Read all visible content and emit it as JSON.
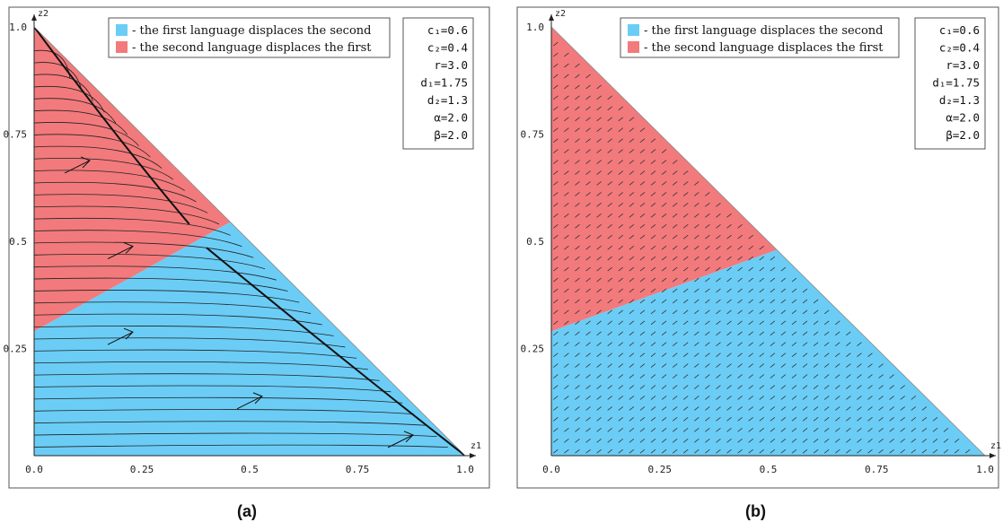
{
  "chart_data": [
    {
      "type": "area",
      "panel_label": "(a)",
      "xlabel": "z1",
      "ylabel": "z2",
      "xlim": [
        0,
        1
      ],
      "ylim": [
        0,
        1
      ],
      "x_ticks": [
        "0.0",
        "0.25",
        "0.5",
        "0.75",
        "1.0"
      ],
      "y_ticks": [
        "0.25",
        "0.5",
        "0.75",
        "1.0"
      ],
      "legend": [
        {
          "label": "- the first language displaces the second",
          "color": "#6bcdf6"
        },
        {
          "label": "- the second language displaces the first",
          "color": "#f27a7c"
        }
      ],
      "legend_position": "top",
      "parameters": [
        "c₁=0.6",
        "c₂=0.4",
        "r=3.0",
        "d₁=1.75",
        "d₂=1.3",
        "α=2.0",
        "β=2.0"
      ],
      "regions": {
        "feasible_triangle": [
          [
            0,
            0
          ],
          [
            1,
            0
          ],
          [
            0,
            1
          ]
        ],
        "separatrix": [
          [
            0,
            0.29
          ],
          [
            0.455,
            0.545
          ]
        ]
      },
      "plot_style": "phase trajectories"
    },
    {
      "type": "area",
      "panel_label": "(b)",
      "xlabel": "z1",
      "ylabel": "z2",
      "xlim": [
        0,
        1
      ],
      "ylim": [
        0,
        1
      ],
      "x_ticks": [
        "0.0",
        "0.25",
        "0.5",
        "0.75",
        "1.0"
      ],
      "y_ticks": [
        "0.25",
        "0.5",
        "0.75",
        "1.0"
      ],
      "legend": [
        {
          "label": "- the first language displaces the second",
          "color": "#6bcdf6"
        },
        {
          "label": "- the second language displaces the first",
          "color": "#f27a7c"
        }
      ],
      "legend_position": "top",
      "parameters": [
        "c₁=0.6",
        "c₂=0.4",
        "r=3.0",
        "d₁=1.75",
        "d₂=1.3",
        "α=2.0",
        "β=2.0"
      ],
      "regions": {
        "feasible_triangle": [
          [
            0,
            0
          ],
          [
            1,
            0
          ],
          [
            0,
            1
          ]
        ],
        "separatrix": [
          [
            0,
            0.29
          ],
          [
            0.52,
            0.48
          ]
        ]
      },
      "plot_style": "direction field"
    }
  ]
}
